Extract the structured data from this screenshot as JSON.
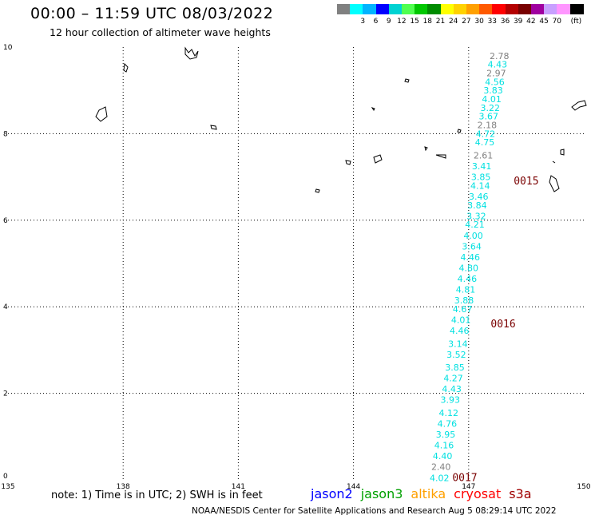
{
  "header": {
    "title": "00:00 – 11:59 UTC 08/03/2022",
    "subtitle": "12 hour collection of altimeter wave heights"
  },
  "colorbar": {
    "colors": [
      "#808080",
      "#00ffff",
      "#00b4ff",
      "#0000ff",
      "#00d2d2",
      "#50ff50",
      "#00c800",
      "#008c00",
      "#ffff00",
      "#ffd200",
      "#ffa000",
      "#ff5a00",
      "#ff0000",
      "#b40000",
      "#780000",
      "#a000a0",
      "#c8a0ff",
      "#ff96ff",
      "#000000"
    ],
    "labels": [
      "3",
      "6",
      "9",
      "12",
      "15",
      "18",
      "21",
      "24",
      "27",
      "30",
      "33",
      "36",
      "39",
      "42",
      "45",
      "70"
    ],
    "unit": "(ft)"
  },
  "map": {
    "lon_ticks": [
      "135",
      "138",
      "141",
      "144",
      "147",
      "150"
    ],
    "lat_ticks": [
      "0",
      "2",
      "4",
      "6",
      "8",
      "10"
    ],
    "lon_range": [
      135,
      150
    ],
    "lat_range": [
      0,
      10
    ],
    "observations": [
      {
        "lon": 147.8,
        "lat": 9.8,
        "v": "2.78",
        "c": "#808080"
      },
      {
        "lon": 147.75,
        "lat": 9.6,
        "v": "4.43",
        "c": "#00e0e0"
      },
      {
        "lon": 147.72,
        "lat": 9.4,
        "v": "2.97",
        "c": "#808080"
      },
      {
        "lon": 147.68,
        "lat": 9.2,
        "v": "4.56",
        "c": "#00e0e0"
      },
      {
        "lon": 147.64,
        "lat": 9.0,
        "v": "3.83",
        "c": "#00e0e0"
      },
      {
        "lon": 147.6,
        "lat": 8.8,
        "v": "4.01",
        "c": "#00e0e0"
      },
      {
        "lon": 147.56,
        "lat": 8.6,
        "v": "3.22",
        "c": "#00e0e0"
      },
      {
        "lon": 147.52,
        "lat": 8.4,
        "v": "3.67",
        "c": "#00e0e0"
      },
      {
        "lon": 147.48,
        "lat": 8.2,
        "v": "2.18",
        "c": "#808080"
      },
      {
        "lon": 147.44,
        "lat": 8.0,
        "v": "4.72",
        "c": "#00e0e0"
      },
      {
        "lon": 147.42,
        "lat": 7.8,
        "v": "4.75",
        "c": "#00e0e0"
      },
      {
        "lon": 147.38,
        "lat": 7.5,
        "v": "2.61",
        "c": "#808080"
      },
      {
        "lon": 147.34,
        "lat": 7.25,
        "v": "3.41",
        "c": "#00e0e0"
      },
      {
        "lon": 147.32,
        "lat": 7.0,
        "v": "3.85",
        "c": "#00e0e0"
      },
      {
        "lon": 147.3,
        "lat": 6.8,
        "v": "4.14",
        "c": "#00e0e0"
      },
      {
        "lon": 147.26,
        "lat": 6.55,
        "v": "3.46",
        "c": "#00e0e0"
      },
      {
        "lon": 147.22,
        "lat": 6.35,
        "v": "3.84",
        "c": "#00e0e0"
      },
      {
        "lon": 147.2,
        "lat": 6.1,
        "v": "3.32",
        "c": "#00e0e0"
      },
      {
        "lon": 147.16,
        "lat": 5.9,
        "v": "4.21",
        "c": "#00e0e0"
      },
      {
        "lon": 147.12,
        "lat": 5.65,
        "v": "4.00",
        "c": "#00e0e0"
      },
      {
        "lon": 147.08,
        "lat": 5.4,
        "v": "3.64",
        "c": "#00e0e0"
      },
      {
        "lon": 147.04,
        "lat": 5.15,
        "v": "4.46",
        "c": "#00e0e0"
      },
      {
        "lon": 147.0,
        "lat": 4.9,
        "v": "4.80",
        "c": "#00e0e0"
      },
      {
        "lon": 146.96,
        "lat": 4.65,
        "v": "4.46",
        "c": "#00e0e0"
      },
      {
        "lon": 146.92,
        "lat": 4.4,
        "v": "4.81",
        "c": "#00e0e0"
      },
      {
        "lon": 146.88,
        "lat": 4.15,
        "v": "3.88",
        "c": "#00e0e0"
      },
      {
        "lon": 146.84,
        "lat": 3.95,
        "v": "4.67",
        "c": "#00e0e0"
      },
      {
        "lon": 146.8,
        "lat": 3.7,
        "v": "4.01",
        "c": "#00e0e0"
      },
      {
        "lon": 146.76,
        "lat": 3.45,
        "v": "4.46",
        "c": "#00e0e0"
      },
      {
        "lon": 146.72,
        "lat": 3.15,
        "v": "3.14",
        "c": "#00e0e0"
      },
      {
        "lon": 146.68,
        "lat": 2.9,
        "v": "3.52",
        "c": "#00e0e0"
      },
      {
        "lon": 146.64,
        "lat": 2.6,
        "v": "3.85",
        "c": "#00e0e0"
      },
      {
        "lon": 146.6,
        "lat": 2.35,
        "v": "4.27",
        "c": "#00e0e0"
      },
      {
        "lon": 146.56,
        "lat": 2.1,
        "v": "4.43",
        "c": "#00e0e0"
      },
      {
        "lon": 146.52,
        "lat": 1.85,
        "v": "3.93",
        "c": "#00e0e0"
      },
      {
        "lon": 146.48,
        "lat": 1.55,
        "v": "4.12",
        "c": "#00e0e0"
      },
      {
        "lon": 146.44,
        "lat": 1.3,
        "v": "4.76",
        "c": "#00e0e0"
      },
      {
        "lon": 146.4,
        "lat": 1.05,
        "v": "3.95",
        "c": "#00e0e0"
      },
      {
        "lon": 146.36,
        "lat": 0.8,
        "v": "4.16",
        "c": "#00e0e0"
      },
      {
        "lon": 146.32,
        "lat": 0.55,
        "v": "4.40",
        "c": "#00e0e0"
      },
      {
        "lon": 146.28,
        "lat": 0.3,
        "v": "2.40",
        "c": "#808080"
      },
      {
        "lon": 146.24,
        "lat": 0.05,
        "v": "4.02",
        "c": "#00e0e0"
      }
    ],
    "time_labels": [
      {
        "lon": 148.5,
        "lat": 6.9,
        "t": "0015"
      },
      {
        "lon": 147.9,
        "lat": 3.6,
        "t": "0016"
      },
      {
        "lon": 146.9,
        "lat": 0.05,
        "t": "0017"
      }
    ]
  },
  "footer": {
    "note": "note:  1) Time is in UTC;  2) SWH is in feet",
    "satellites": [
      {
        "name": "jason2",
        "color": "#0000ff"
      },
      {
        "name": "jason3",
        "color": "#00a000"
      },
      {
        "name": "altika",
        "color": "#ffa000"
      },
      {
        "name": "cryosat",
        "color": "#ff0000"
      },
      {
        "name": "s3a",
        "color": "#a00000"
      }
    ],
    "credit": "NOAA/NESDIS Center for Satellite Applications and Research    Aug  5 08:29:14 UTC 2022"
  }
}
